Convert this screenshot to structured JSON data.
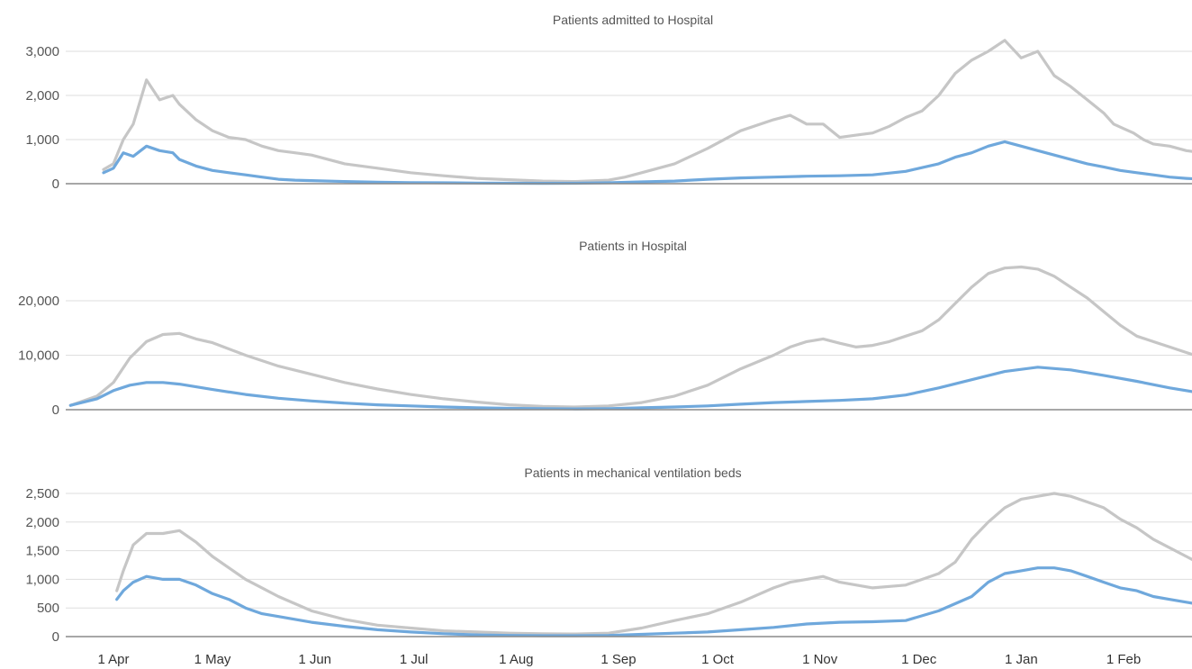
{
  "colors": {
    "grey_series": "#c6c6c6",
    "blue_series": "#6fa8dc",
    "gridline": "#dedede",
    "baseline": "#8a8a8a"
  },
  "chart_data": [
    {
      "type": "line",
      "title": "Patients admitted to Hospital",
      "x_unit": "days from 1 Apr",
      "ylim": [
        0,
        3000
      ],
      "yticks": [
        0,
        1000,
        2000,
        3000
      ],
      "ytick_labels": [
        "0",
        "1,000",
        "2,000",
        "3,000"
      ],
      "grid": true,
      "series": [
        {
          "color": "#c6c6c6",
          "x": [
            -3,
            0,
            3,
            6,
            10,
            14,
            18,
            20,
            25,
            30,
            35,
            40,
            45,
            50,
            55,
            60,
            70,
            80,
            90,
            100,
            110,
            120,
            130,
            140,
            150,
            155,
            160,
            170,
            180,
            190,
            200,
            205,
            210,
            215,
            220,
            225,
            230,
            235,
            240,
            245,
            250,
            255,
            260,
            265,
            270,
            275,
            280,
            285,
            290,
            295,
            300,
            303,
            306,
            309,
            312,
            315,
            320,
            325,
            330
          ],
          "y": [
            320,
            450,
            1000,
            1350,
            2350,
            1900,
            2000,
            1800,
            1450,
            1200,
            1050,
            1000,
            850,
            750,
            700,
            650,
            450,
            350,
            250,
            180,
            120,
            90,
            60,
            50,
            80,
            150,
            250,
            450,
            800,
            1200,
            1450,
            1550,
            1350,
            1350,
            1050,
            1100,
            1150,
            1300,
            1500,
            1650,
            2000,
            2500,
            2800,
            3000,
            3250,
            2850,
            3000,
            2450,
            2200,
            1900,
            1600,
            1350,
            1250,
            1150,
            1000,
            900,
            850,
            750,
            700
          ]
        },
        {
          "color": "#6fa8dc",
          "x": [
            -3,
            0,
            3,
            6,
            10,
            14,
            18,
            20,
            25,
            30,
            35,
            40,
            45,
            50,
            55,
            60,
            70,
            80,
            90,
            100,
            110,
            120,
            130,
            140,
            150,
            160,
            170,
            180,
            190,
            200,
            210,
            220,
            230,
            240,
            250,
            255,
            260,
            265,
            270,
            275,
            280,
            285,
            290,
            295,
            300,
            305,
            310,
            315,
            320,
            325,
            330
          ],
          "y": [
            250,
            350,
            700,
            620,
            850,
            750,
            700,
            550,
            400,
            300,
            250,
            200,
            150,
            100,
            80,
            70,
            50,
            35,
            25,
            20,
            15,
            10,
            8,
            10,
            20,
            40,
            60,
            100,
            130,
            150,
            170,
            180,
            200,
            280,
            450,
            600,
            700,
            850,
            950,
            850,
            750,
            650,
            550,
            450,
            380,
            300,
            250,
            200,
            150,
            120,
            100
          ]
        }
      ]
    },
    {
      "type": "line",
      "title": "Patients in Hospital",
      "x_unit": "days from 1 Apr",
      "ylim": [
        0,
        27000
      ],
      "yticks": [
        0,
        10000,
        20000
      ],
      "ytick_labels": [
        "0",
        "10,000",
        "20,000"
      ],
      "grid": true,
      "series": [
        {
          "color": "#c6c6c6",
          "x": [
            -13,
            -5,
            0,
            5,
            10,
            15,
            20,
            25,
            30,
            40,
            50,
            60,
            70,
            80,
            90,
            100,
            110,
            120,
            130,
            140,
            150,
            160,
            170,
            180,
            190,
            200,
            205,
            210,
            215,
            220,
            225,
            230,
            235,
            240,
            245,
            250,
            255,
            260,
            265,
            270,
            275,
            280,
            285,
            290,
            295,
            300,
            305,
            310,
            315,
            320,
            325,
            330
          ],
          "y": [
            800,
            2500,
            5000,
            9500,
            12500,
            13800,
            14000,
            13000,
            12300,
            10000,
            8000,
            6500,
            5000,
            3800,
            2800,
            2000,
            1400,
            900,
            600,
            500,
            700,
            1300,
            2500,
            4500,
            7500,
            10000,
            11500,
            12500,
            13000,
            12200,
            11500,
            11800,
            12500,
            13500,
            14500,
            16500,
            19500,
            22500,
            25000,
            26000,
            26200,
            25800,
            24500,
            22500,
            20500,
            18000,
            15500,
            13500,
            12500,
            11500,
            10500,
            9500
          ]
        },
        {
          "color": "#6fa8dc",
          "x": [
            -13,
            -5,
            0,
            5,
            10,
            15,
            20,
            25,
            30,
            40,
            50,
            60,
            70,
            80,
            90,
            100,
            110,
            120,
            130,
            140,
            150,
            160,
            170,
            180,
            190,
            200,
            210,
            220,
            230,
            240,
            250,
            260,
            270,
            280,
            290,
            300,
            310,
            320,
            330
          ],
          "y": [
            800,
            2000,
            3500,
            4500,
            5000,
            5000,
            4700,
            4200,
            3700,
            2800,
            2100,
            1600,
            1200,
            900,
            700,
            500,
            350,
            250,
            200,
            150,
            200,
            350,
            500,
            700,
            1000,
            1300,
            1500,
            1700,
            2000,
            2700,
            4000,
            5500,
            7000,
            7800,
            7300,
            6300,
            5200,
            4000,
            3000
          ]
        }
      ]
    },
    {
      "type": "line",
      "title": "Patients in mechanical ventilation beds",
      "x_unit": "days from 1 Apr",
      "ylim": [
        0,
        2600
      ],
      "yticks": [
        0,
        500,
        1000,
        1500,
        2000,
        2500
      ],
      "ytick_labels": [
        "0",
        "500",
        "1,000",
        "1,500",
        "2,000",
        "2,500"
      ],
      "grid": true,
      "series": [
        {
          "color": "#c6c6c6",
          "x": [
            1,
            3,
            6,
            10,
            15,
            20,
            25,
            30,
            35,
            40,
            45,
            50,
            60,
            70,
            80,
            90,
            100,
            110,
            120,
            130,
            140,
            150,
            160,
            170,
            180,
            190,
            200,
            205,
            210,
            215,
            220,
            230,
            240,
            250,
            255,
            260,
            265,
            270,
            275,
            280,
            285,
            290,
            295,
            300,
            305,
            310,
            315,
            320,
            325,
            330
          ],
          "y": [
            800,
            1150,
            1600,
            1800,
            1800,
            1850,
            1650,
            1400,
            1200,
            1000,
            850,
            700,
            450,
            300,
            200,
            150,
            100,
            80,
            60,
            50,
            45,
            60,
            150,
            280,
            400,
            600,
            850,
            950,
            1000,
            1050,
            950,
            850,
            900,
            1100,
            1300,
            1700,
            2000,
            2250,
            2400,
            2450,
            2500,
            2450,
            2350,
            2250,
            2050,
            1900,
            1700,
            1550,
            1400,
            1250
          ]
        },
        {
          "color": "#6fa8dc",
          "x": [
            1,
            3,
            6,
            10,
            15,
            20,
            25,
            30,
            35,
            40,
            45,
            50,
            60,
            70,
            80,
            90,
            100,
            110,
            120,
            130,
            140,
            150,
            160,
            170,
            180,
            190,
            200,
            210,
            220,
            230,
            240,
            250,
            260,
            265,
            270,
            275,
            280,
            285,
            290,
            295,
            300,
            305,
            310,
            315,
            320,
            325,
            330
          ],
          "y": [
            650,
            800,
            950,
            1050,
            1000,
            1000,
            900,
            750,
            650,
            500,
            400,
            350,
            250,
            180,
            120,
            80,
            50,
            30,
            20,
            15,
            15,
            20,
            40,
            60,
            80,
            120,
            160,
            220,
            250,
            260,
            280,
            450,
            700,
            950,
            1100,
            1150,
            1200,
            1200,
            1150,
            1050,
            950,
            850,
            800,
            700,
            650,
            600,
            550
          ]
        }
      ]
    }
  ],
  "x_axis": {
    "ticks": [
      0,
      30,
      61,
      91,
      122,
      153,
      183,
      214,
      244,
      275,
      306
    ],
    "labels": [
      "1 Apr",
      "1 May",
      "1 Jun",
      "1 Jul",
      "1 Aug",
      "1 Sep",
      "1 Oct",
      "1 Nov",
      "1 Dec",
      "1 Jan",
      "1 Feb"
    ]
  }
}
